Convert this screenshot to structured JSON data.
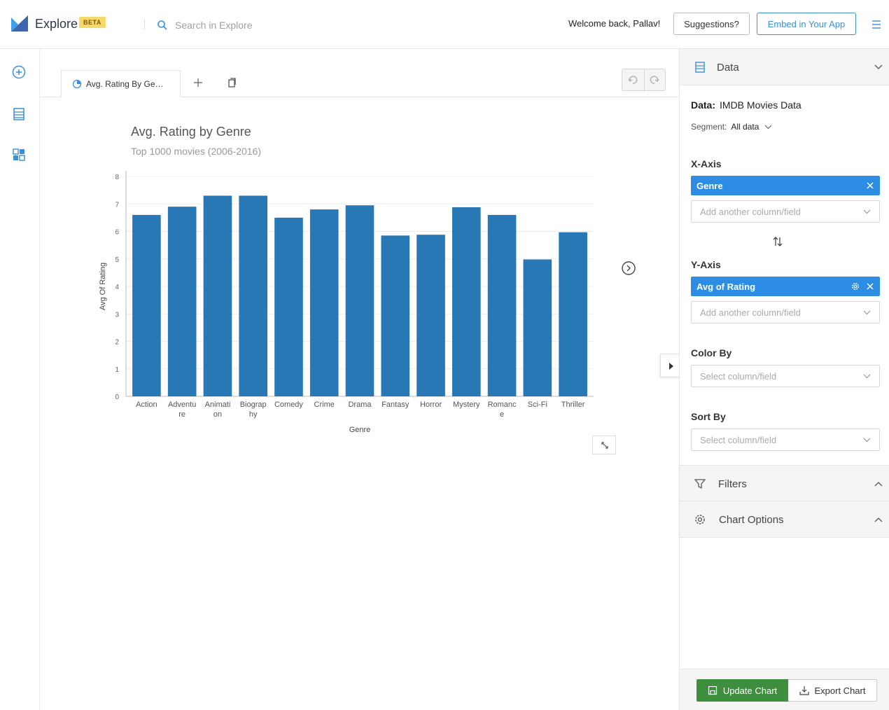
{
  "header": {
    "brand": "Explore",
    "beta_badge": "BETA",
    "search_placeholder": "Search in Explore",
    "welcome": "Welcome back, Pallav!",
    "suggestions_label": "Suggestions?",
    "embed_label": "Embed in Your App"
  },
  "tabs": [
    {
      "label": "Avg. Rating By Ge…",
      "active": true
    }
  ],
  "chart": {
    "title": "Avg. Rating by Genre",
    "subtitle": "Top 1000 movies (2006-2016)"
  },
  "chart_data": {
    "type": "bar",
    "categories": [
      "Action",
      "Adventure",
      "Animation",
      "Biography",
      "Comedy",
      "Crime",
      "Drama",
      "Fantasy",
      "Horror",
      "Mystery",
      "Romance",
      "Sci-Fi",
      "Thriller"
    ],
    "category_tick_lines": [
      [
        "Action"
      ],
      [
        "Adventu",
        "re"
      ],
      [
        "Animati",
        "on"
      ],
      [
        "Biograp",
        "hy"
      ],
      [
        "Comedy"
      ],
      [
        "Crime"
      ],
      [
        "Drama"
      ],
      [
        "Fantasy"
      ],
      [
        "Horror"
      ],
      [
        "Mystery"
      ],
      [
        "Romanc",
        "e"
      ],
      [
        "Sci-Fi"
      ],
      [
        "Thriller"
      ]
    ],
    "values": [
      6.6,
      6.9,
      7.3,
      7.3,
      6.5,
      6.8,
      6.95,
      5.85,
      5.88,
      6.88,
      6.6,
      4.98,
      5.97
    ],
    "xlabel": "Genre",
    "ylabel": "Avg Of Rating",
    "ylim": [
      0,
      8
    ],
    "yticks": [
      0,
      1,
      2,
      3,
      4,
      5,
      6,
      7,
      8
    ],
    "bar_color": "#2878b5",
    "grid": true
  },
  "panel": {
    "data_section": "Data",
    "data_label": "Data:",
    "data_source": "IMDB Movies Data",
    "segment_label": "Segment:",
    "segment_value": "All data",
    "x_axis_label": "X-Axis",
    "x_axis_field": "Genre",
    "x_axis_add_placeholder": "Add another column/field",
    "y_axis_label": "Y-Axis",
    "y_axis_field": "Avg of Rating",
    "y_axis_add_placeholder": "Add another column/field",
    "color_by_label": "Color By",
    "color_by_placeholder": "Select column/field",
    "sort_by_label": "Sort By",
    "sort_by_placeholder": "Select column/field",
    "filters_label": "Filters",
    "chart_options_label": "Chart Options",
    "update_label": "Update Chart",
    "export_label": "Export Chart"
  },
  "colors": {
    "accent_blue": "#2d8de5",
    "update_green": "#3d8f3d",
    "beta_yellow": "#f9d86b"
  }
}
